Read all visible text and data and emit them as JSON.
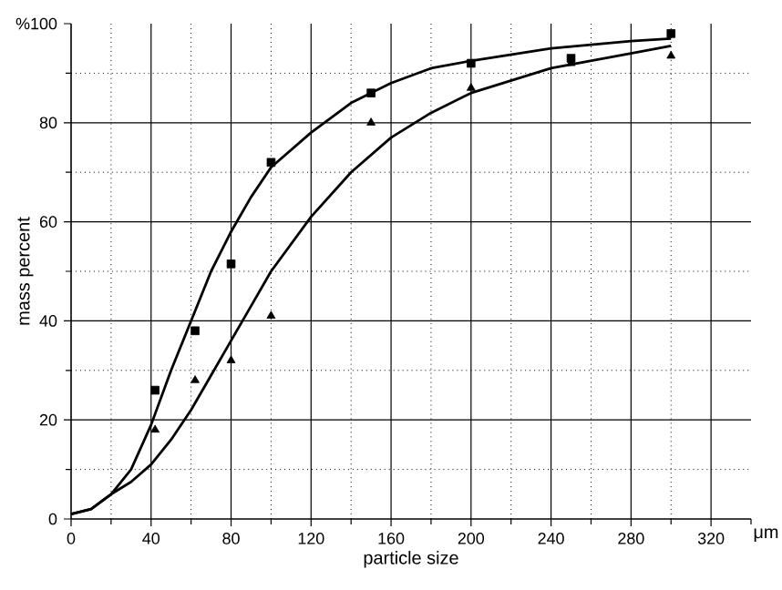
{
  "chart_data": {
    "type": "scatter",
    "xlabel": "particle size",
    "ylabel": "mass percent",
    "annotations": [
      "μm"
    ],
    "xlim": [
      0,
      340
    ],
    "ylim": [
      0,
      100
    ],
    "xticks": [
      0,
      40,
      80,
      120,
      160,
      200,
      240,
      280,
      320,
      {
        "value": 20,
        "label": null
      },
      {
        "value": 60,
        "label": null
      },
      {
        "value": 100,
        "label": null
      },
      {
        "value": 140,
        "label": null
      },
      {
        "value": 180,
        "label": null
      },
      {
        "value": 220,
        "label": null
      },
      {
        "value": 260,
        "label": null
      },
      {
        "value": 300,
        "label": null
      },
      {
        "value": 340,
        "label": null
      }
    ],
    "yticks": [
      0,
      20,
      40,
      60,
      80,
      {
        "value": 100,
        "label": "%100"
      },
      {
        "value": 10,
        "label": null
      },
      {
        "value": 30,
        "label": null
      },
      {
        "value": 50,
        "label": null
      },
      {
        "value": 70,
        "label": null
      },
      {
        "value": 90,
        "label": null
      }
    ],
    "grid": true,
    "series": [
      {
        "marker": "square",
        "color": "#000000",
        "x": [
          42,
          62,
          80,
          100,
          150,
          200,
          250,
          300
        ],
        "values": [
          26,
          38,
          51.5,
          72,
          86,
          92,
          93,
          98
        ]
      },
      {
        "marker": "triangle",
        "color": "#000000",
        "x": [
          42,
          62,
          80,
          100,
          150,
          200,
          250,
          300
        ],
        "values": [
          18,
          28,
          32,
          41,
          80,
          87,
          92,
          93.5
        ]
      },
      {
        "type": "line",
        "marker": "none",
        "color": "#000000",
        "x": [
          0,
          10,
          20,
          30,
          40,
          50,
          60,
          70,
          80,
          90,
          100,
          120,
          140,
          160,
          180,
          200,
          240,
          280,
          300
        ],
        "values": [
          1,
          2,
          5,
          10,
          19,
          30,
          40,
          50,
          58,
          65,
          71,
          78,
          84,
          88,
          91,
          92.5,
          95,
          96.5,
          97
        ]
      },
      {
        "type": "line",
        "marker": "none",
        "color": "#000000",
        "x": [
          0,
          10,
          20,
          30,
          40,
          50,
          60,
          70,
          80,
          90,
          100,
          120,
          140,
          160,
          180,
          200,
          240,
          280,
          300
        ],
        "values": [
          1,
          2,
          5,
          7.5,
          11,
          16,
          22,
          29,
          36,
          43,
          50,
          61,
          70,
          77,
          82,
          86,
          91,
          94,
          95.5
        ]
      }
    ]
  }
}
